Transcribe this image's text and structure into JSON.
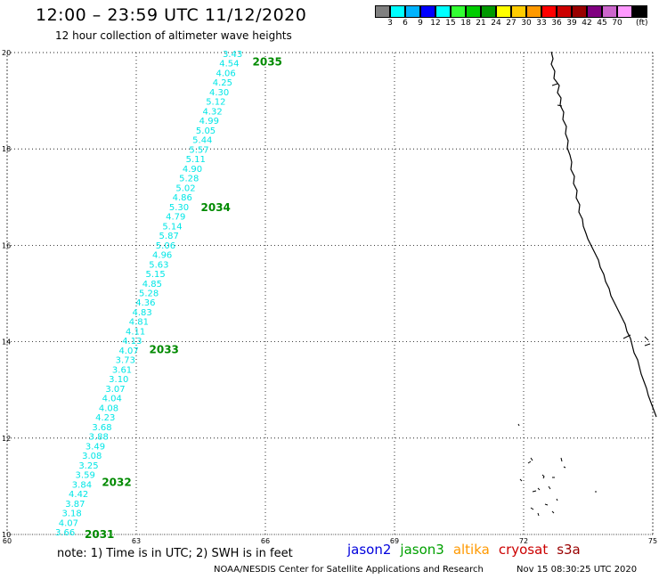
{
  "header": {
    "title": "12:00 – 23:59 UTC 11/12/2020",
    "subtitle": "12 hour collection of altimeter wave heights"
  },
  "legend": {
    "colors": [
      "#808080",
      "#00ffff",
      "#00b3ff",
      "#0000ff",
      "#00ffff",
      "#33ff33",
      "#00cc00",
      "#009900",
      "#ffff00",
      "#ffcc00",
      "#ff9900",
      "#ff0000",
      "#cc0000",
      "#990000",
      "#800080",
      "#cc66cc",
      "#ff99ff",
      "#000000"
    ],
    "labels": [
      "3",
      "6",
      "9",
      "12",
      "15",
      "18",
      "21",
      "24",
      "27",
      "30",
      "33",
      "36",
      "39",
      "42",
      "45",
      "70"
    ],
    "unit": "(ft)"
  },
  "map": {
    "lon_ticks": [
      "60",
      "63",
      "66",
      "69",
      "72",
      "75"
    ],
    "lat_ticks": [
      "20",
      "18",
      "16",
      "14",
      "12",
      "10"
    ],
    "lon_range": [
      60,
      75
    ],
    "lat_range": [
      10,
      20
    ],
    "wave_color": "#00e6e6",
    "pass_color": "#008a00",
    "wave_heights": [
      "3.43",
      "4.54",
      "4.06",
      "4.25",
      "4.30",
      "5.12",
      "4.32",
      "4.99",
      "5.05",
      "5.44",
      "5.57",
      "5.11",
      "4.90",
      "5.28",
      "5.02",
      "4.86",
      "5.30",
      "4.79",
      "5.14",
      "5.87",
      "5.06",
      "4.96",
      "5.63",
      "5.15",
      "4.85",
      "5.28",
      "4.36",
      "4.83",
      "4.81",
      "4.11",
      "4.13",
      "4.07",
      "3.73",
      "3.61",
      "3.10",
      "3.07",
      "4.04",
      "4.08",
      "4.23",
      "3.68",
      "3.88",
      "3.49",
      "3.08",
      "3.25",
      "3.59",
      "3.84",
      "4.42",
      "3.87",
      "3.18",
      "4.07",
      "3.66"
    ],
    "passes": [
      {
        "id": "2035",
        "lat": 19.82,
        "lon": 65.7
      },
      {
        "id": "2034",
        "lat": 16.8,
        "lon": 64.5
      },
      {
        "id": "2033",
        "lat": 13.85,
        "lon": 63.3
      },
      {
        "id": "2032",
        "lat": 11.1,
        "lon": 62.2
      },
      {
        "id": "2031",
        "lat": 10.02,
        "lon": 61.8
      }
    ]
  },
  "footer": {
    "note": "note: 1) Time is in UTC; 2) SWH is in feet",
    "satellites": [
      {
        "name": "jason2",
        "color": "#0000dd"
      },
      {
        "name": "jason3",
        "color": "#00a000"
      },
      {
        "name": "altika",
        "color": "#ff9900"
      },
      {
        "name": "cryosat",
        "color": "#cc0000"
      },
      {
        "name": "s3a",
        "color": "#990000"
      }
    ],
    "credit": "NOAA/NESDIS Center for Satellite Applications and Research",
    "timestamp": "Nov 15 08:30:25 UTC 2020"
  }
}
